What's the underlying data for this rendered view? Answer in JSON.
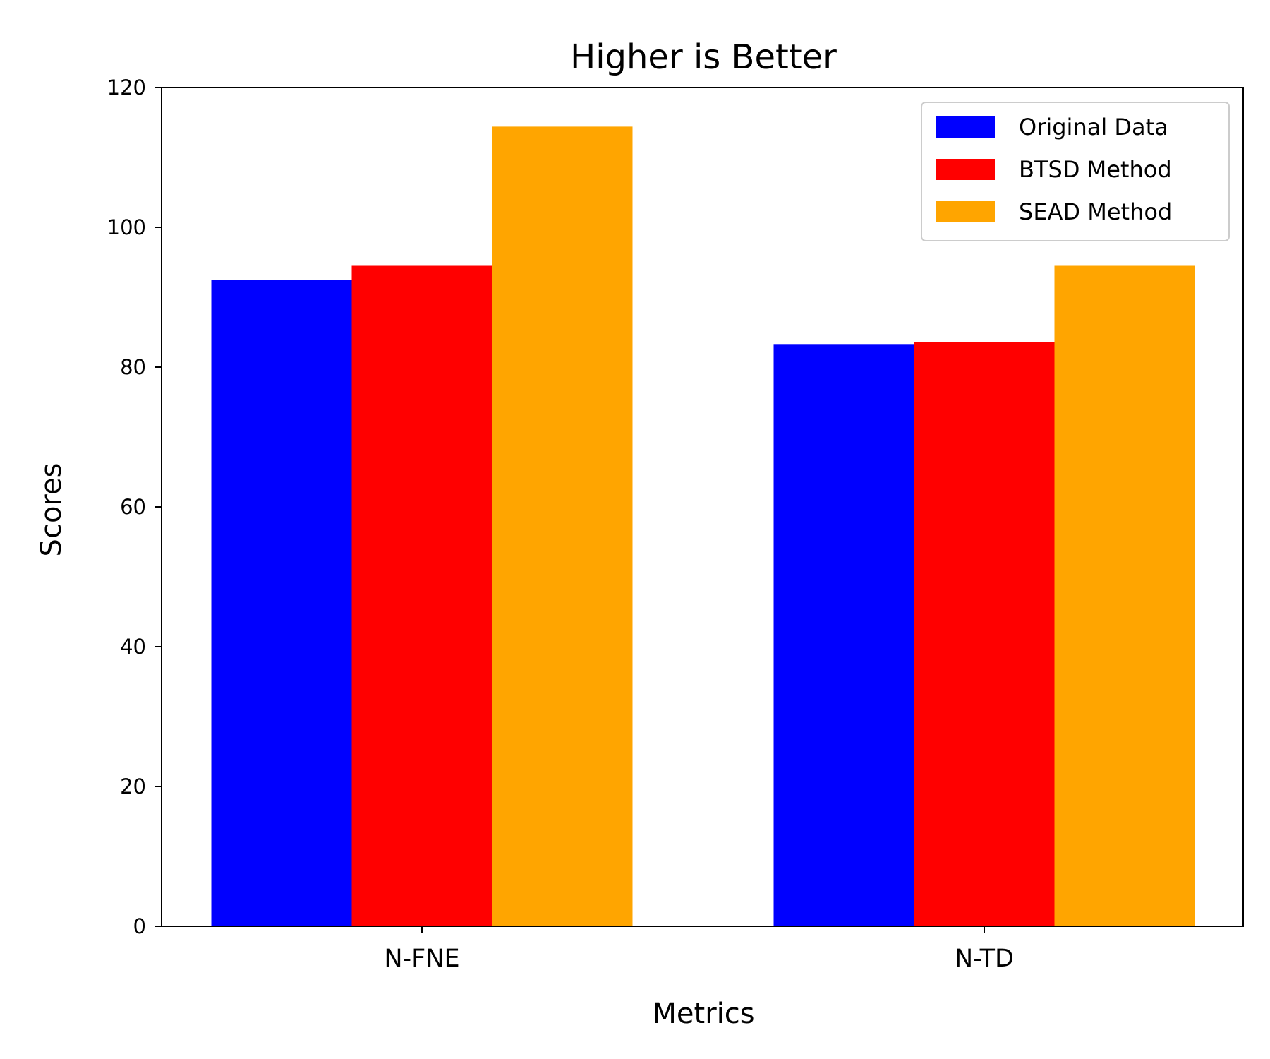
{
  "chart_data": {
    "type": "bar",
    "title": "Higher is Better",
    "xlabel": "Metrics",
    "ylabel": "Scores",
    "categories": [
      "N-FNE",
      "N-TD"
    ],
    "series": [
      {
        "name": "Original Data",
        "color": "#0000ff",
        "values": [
          92.5,
          83.3
        ]
      },
      {
        "name": "BTSD Method",
        "color": "#ff0000",
        "values": [
          94.5,
          83.6
        ]
      },
      {
        "name": "SEAD Method",
        "color": "#ffa500",
        "values": [
          114.4,
          94.5
        ]
      }
    ],
    "ylim": [
      0,
      120
    ],
    "yticks": [
      "0",
      "20",
      "40",
      "60",
      "80",
      "100",
      "120"
    ],
    "grid": false,
    "legend_position": "top-right"
  }
}
